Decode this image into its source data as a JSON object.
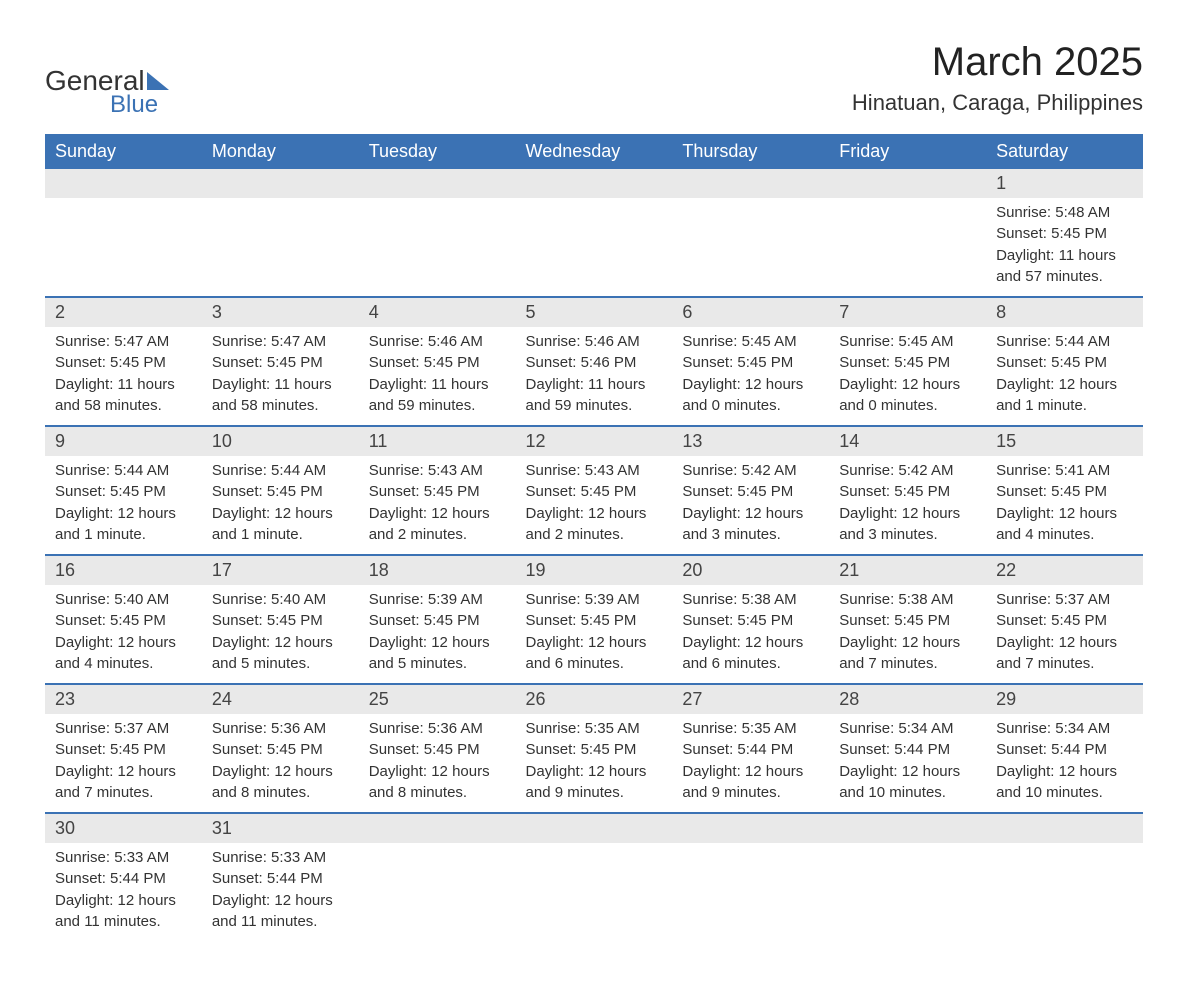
{
  "logo_text_1": "General",
  "logo_text_2": "Blue",
  "month_title": "March 2025",
  "location": "Hinatuan, Caraga, Philippines",
  "colors": {
    "header_bg": "#3b72b4",
    "header_fg": "#ffffff",
    "day_num_bg": "#e9e9e9",
    "text": "#333333",
    "separator": "#3b72b4"
  },
  "day_headers": [
    "Sunday",
    "Monday",
    "Tuesday",
    "Wednesday",
    "Thursday",
    "Friday",
    "Saturday"
  ],
  "weeks": [
    [
      null,
      null,
      null,
      null,
      null,
      null,
      {
        "num": "1",
        "sunrise": "Sunrise: 5:48 AM",
        "sunset": "Sunset: 5:45 PM",
        "daylight1": "Daylight: 11 hours",
        "daylight2": "and 57 minutes."
      }
    ],
    [
      {
        "num": "2",
        "sunrise": "Sunrise: 5:47 AM",
        "sunset": "Sunset: 5:45 PM",
        "daylight1": "Daylight: 11 hours",
        "daylight2": "and 58 minutes."
      },
      {
        "num": "3",
        "sunrise": "Sunrise: 5:47 AM",
        "sunset": "Sunset: 5:45 PM",
        "daylight1": "Daylight: 11 hours",
        "daylight2": "and 58 minutes."
      },
      {
        "num": "4",
        "sunrise": "Sunrise: 5:46 AM",
        "sunset": "Sunset: 5:45 PM",
        "daylight1": "Daylight: 11 hours",
        "daylight2": "and 59 minutes."
      },
      {
        "num": "5",
        "sunrise": "Sunrise: 5:46 AM",
        "sunset": "Sunset: 5:46 PM",
        "daylight1": "Daylight: 11 hours",
        "daylight2": "and 59 minutes."
      },
      {
        "num": "6",
        "sunrise": "Sunrise: 5:45 AM",
        "sunset": "Sunset: 5:45 PM",
        "daylight1": "Daylight: 12 hours",
        "daylight2": "and 0 minutes."
      },
      {
        "num": "7",
        "sunrise": "Sunrise: 5:45 AM",
        "sunset": "Sunset: 5:45 PM",
        "daylight1": "Daylight: 12 hours",
        "daylight2": "and 0 minutes."
      },
      {
        "num": "8",
        "sunrise": "Sunrise: 5:44 AM",
        "sunset": "Sunset: 5:45 PM",
        "daylight1": "Daylight: 12 hours",
        "daylight2": "and 1 minute."
      }
    ],
    [
      {
        "num": "9",
        "sunrise": "Sunrise: 5:44 AM",
        "sunset": "Sunset: 5:45 PM",
        "daylight1": "Daylight: 12 hours",
        "daylight2": "and 1 minute."
      },
      {
        "num": "10",
        "sunrise": "Sunrise: 5:44 AM",
        "sunset": "Sunset: 5:45 PM",
        "daylight1": "Daylight: 12 hours",
        "daylight2": "and 1 minute."
      },
      {
        "num": "11",
        "sunrise": "Sunrise: 5:43 AM",
        "sunset": "Sunset: 5:45 PM",
        "daylight1": "Daylight: 12 hours",
        "daylight2": "and 2 minutes."
      },
      {
        "num": "12",
        "sunrise": "Sunrise: 5:43 AM",
        "sunset": "Sunset: 5:45 PM",
        "daylight1": "Daylight: 12 hours",
        "daylight2": "and 2 minutes."
      },
      {
        "num": "13",
        "sunrise": "Sunrise: 5:42 AM",
        "sunset": "Sunset: 5:45 PM",
        "daylight1": "Daylight: 12 hours",
        "daylight2": "and 3 minutes."
      },
      {
        "num": "14",
        "sunrise": "Sunrise: 5:42 AM",
        "sunset": "Sunset: 5:45 PM",
        "daylight1": "Daylight: 12 hours",
        "daylight2": "and 3 minutes."
      },
      {
        "num": "15",
        "sunrise": "Sunrise: 5:41 AM",
        "sunset": "Sunset: 5:45 PM",
        "daylight1": "Daylight: 12 hours",
        "daylight2": "and 4 minutes."
      }
    ],
    [
      {
        "num": "16",
        "sunrise": "Sunrise: 5:40 AM",
        "sunset": "Sunset: 5:45 PM",
        "daylight1": "Daylight: 12 hours",
        "daylight2": "and 4 minutes."
      },
      {
        "num": "17",
        "sunrise": "Sunrise: 5:40 AM",
        "sunset": "Sunset: 5:45 PM",
        "daylight1": "Daylight: 12 hours",
        "daylight2": "and 5 minutes."
      },
      {
        "num": "18",
        "sunrise": "Sunrise: 5:39 AM",
        "sunset": "Sunset: 5:45 PM",
        "daylight1": "Daylight: 12 hours",
        "daylight2": "and 5 minutes."
      },
      {
        "num": "19",
        "sunrise": "Sunrise: 5:39 AM",
        "sunset": "Sunset: 5:45 PM",
        "daylight1": "Daylight: 12 hours",
        "daylight2": "and 6 minutes."
      },
      {
        "num": "20",
        "sunrise": "Sunrise: 5:38 AM",
        "sunset": "Sunset: 5:45 PM",
        "daylight1": "Daylight: 12 hours",
        "daylight2": "and 6 minutes."
      },
      {
        "num": "21",
        "sunrise": "Sunrise: 5:38 AM",
        "sunset": "Sunset: 5:45 PM",
        "daylight1": "Daylight: 12 hours",
        "daylight2": "and 7 minutes."
      },
      {
        "num": "22",
        "sunrise": "Sunrise: 5:37 AM",
        "sunset": "Sunset: 5:45 PM",
        "daylight1": "Daylight: 12 hours",
        "daylight2": "and 7 minutes."
      }
    ],
    [
      {
        "num": "23",
        "sunrise": "Sunrise: 5:37 AM",
        "sunset": "Sunset: 5:45 PM",
        "daylight1": "Daylight: 12 hours",
        "daylight2": "and 7 minutes."
      },
      {
        "num": "24",
        "sunrise": "Sunrise: 5:36 AM",
        "sunset": "Sunset: 5:45 PM",
        "daylight1": "Daylight: 12 hours",
        "daylight2": "and 8 minutes."
      },
      {
        "num": "25",
        "sunrise": "Sunrise: 5:36 AM",
        "sunset": "Sunset: 5:45 PM",
        "daylight1": "Daylight: 12 hours",
        "daylight2": "and 8 minutes."
      },
      {
        "num": "26",
        "sunrise": "Sunrise: 5:35 AM",
        "sunset": "Sunset: 5:45 PM",
        "daylight1": "Daylight: 12 hours",
        "daylight2": "and 9 minutes."
      },
      {
        "num": "27",
        "sunrise": "Sunrise: 5:35 AM",
        "sunset": "Sunset: 5:44 PM",
        "daylight1": "Daylight: 12 hours",
        "daylight2": "and 9 minutes."
      },
      {
        "num": "28",
        "sunrise": "Sunrise: 5:34 AM",
        "sunset": "Sunset: 5:44 PM",
        "daylight1": "Daylight: 12 hours",
        "daylight2": "and 10 minutes."
      },
      {
        "num": "29",
        "sunrise": "Sunrise: 5:34 AM",
        "sunset": "Sunset: 5:44 PM",
        "daylight1": "Daylight: 12 hours",
        "daylight2": "and 10 minutes."
      }
    ],
    [
      {
        "num": "30",
        "sunrise": "Sunrise: 5:33 AM",
        "sunset": "Sunset: 5:44 PM",
        "daylight1": "Daylight: 12 hours",
        "daylight2": "and 11 minutes."
      },
      {
        "num": "31",
        "sunrise": "Sunrise: 5:33 AM",
        "sunset": "Sunset: 5:44 PM",
        "daylight1": "Daylight: 12 hours",
        "daylight2": "and 11 minutes."
      },
      null,
      null,
      null,
      null,
      null
    ]
  ]
}
